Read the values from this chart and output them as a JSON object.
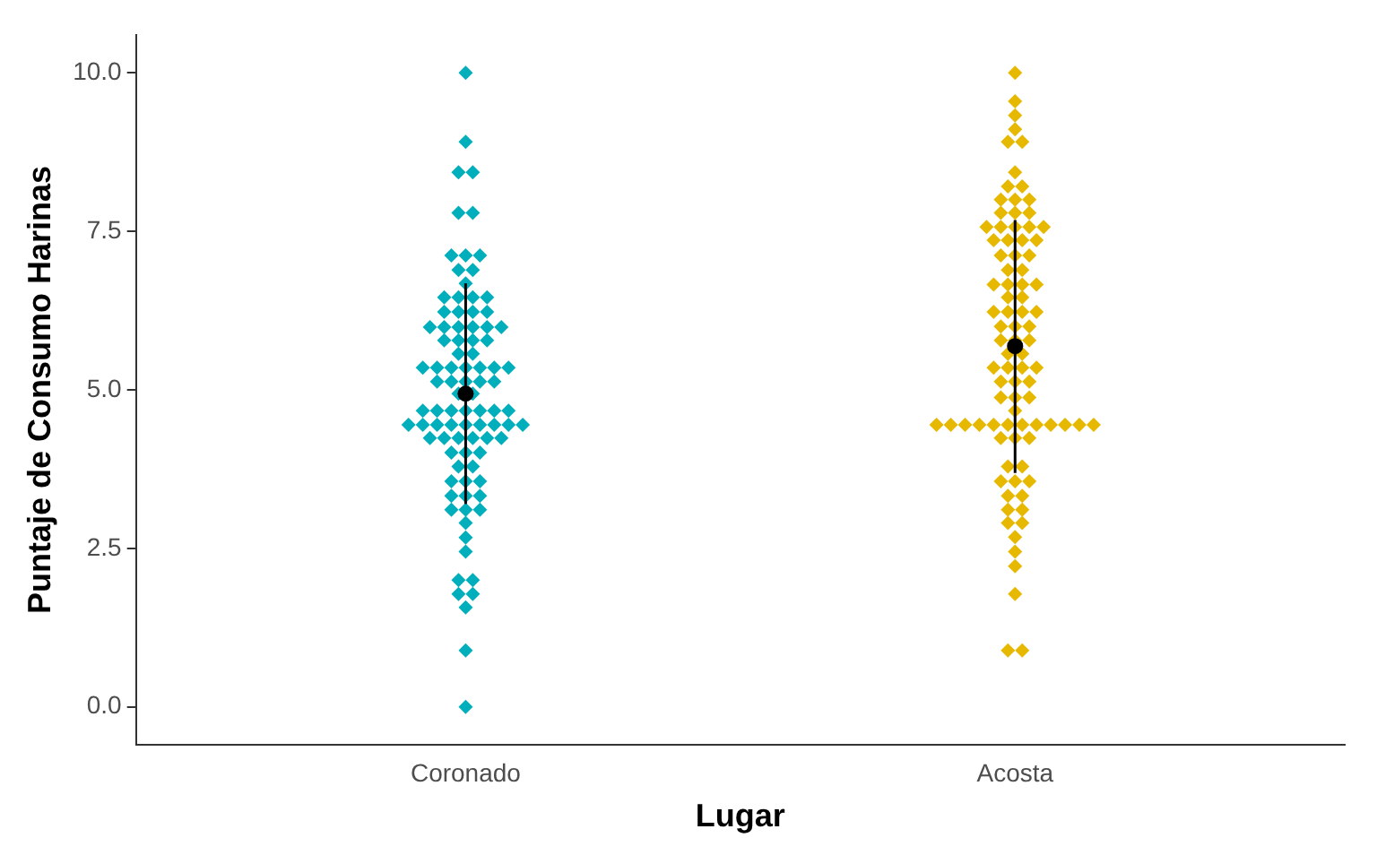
{
  "chart_data": {
    "type": "scatter",
    "xlabel": "Lugar",
    "ylabel": "Puntaje de Consumo Harinas",
    "categories": [
      "Coronado",
      "Acosta"
    ],
    "ylim": [
      -0.6,
      10.6
    ],
    "yticks": [
      {
        "value": 0,
        "label": "0.0"
      },
      {
        "value": 2.5,
        "label": "2.5"
      },
      {
        "value": 5,
        "label": "5.0"
      },
      {
        "value": 7.5,
        "label": "7.5"
      },
      {
        "value": 10,
        "label": "10.0"
      }
    ],
    "grid": false,
    "legend": false,
    "marker": "diamond",
    "series": [
      {
        "color": "#00afbb",
        "x": [
          "Coronado",
          "Coronado",
          "Coronado",
          "Coronado",
          "Coronado",
          "Coronado",
          "Coronado",
          "Coronado",
          "Coronado",
          "Coronado",
          "Coronado",
          "Coronado",
          "Coronado",
          "Coronado",
          "Coronado",
          "Coronado",
          "Coronado",
          "Coronado",
          "Coronado",
          "Coronado",
          "Coronado",
          "Coronado",
          "Coronado",
          "Coronado",
          "Coronado",
          "Coronado",
          "Coronado",
          "Coronado",
          "Coronado",
          "Coronado",
          "Coronado",
          "Coronado",
          "Coronado",
          "Coronado",
          "Coronado",
          "Coronado",
          "Coronado",
          "Coronado",
          "Coronado",
          "Coronado",
          "Coronado",
          "Coronado",
          "Coronado",
          "Coronado",
          "Coronado",
          "Coronado",
          "Coronado",
          "Coronado",
          "Coronado",
          "Coronado",
          "Coronado",
          "Coronado",
          "Coronado",
          "Coronado",
          "Coronado",
          "Coronado",
          "Coronado",
          "Coronado",
          "Coronado",
          "Coronado",
          "Coronado",
          "Coronado",
          "Coronado",
          "Coronado",
          "Coronado",
          "Coronado",
          "Coronado",
          "Coronado",
          "Coronado",
          "Coronado",
          "Coronado",
          "Coronado",
          "Coronado",
          "Coronado",
          "Coronado",
          "Coronado",
          "Coronado",
          "Coronado",
          "Coronado",
          "Coronado",
          "Coronado",
          "Coronado",
          "Coronado",
          "Coronado",
          "Coronado",
          "Coronado",
          "Coronado",
          "Coronado",
          "Coronado",
          "Coronado",
          "Coronado",
          "Coronado"
        ],
        "values": [
          10.0,
          8.91,
          8.43,
          8.43,
          7.79,
          7.79,
          7.12,
          7.12,
          7.12,
          6.89,
          6.89,
          6.68,
          6.46,
          6.46,
          6.46,
          6.46,
          6.23,
          6.23,
          6.23,
          6.23,
          5.99,
          5.99,
          5.99,
          5.99,
          5.99,
          5.99,
          5.78,
          5.78,
          5.78,
          5.78,
          5.57,
          5.57,
          5.35,
          5.35,
          5.35,
          5.35,
          5.35,
          5.35,
          5.35,
          5.13,
          5.13,
          5.13,
          5.13,
          5.13,
          4.94,
          4.94,
          4.67,
          4.67,
          4.67,
          4.67,
          4.67,
          4.67,
          4.67,
          4.45,
          4.45,
          4.45,
          4.45,
          4.45,
          4.45,
          4.45,
          4.45,
          4.45,
          4.24,
          4.24,
          4.24,
          4.24,
          4.24,
          4.24,
          4.01,
          4.01,
          4.01,
          3.79,
          3.79,
          3.56,
          3.56,
          3.56,
          3.33,
          3.33,
          3.33,
          3.11,
          3.11,
          3.11,
          2.9,
          2.67,
          2.45,
          2.0,
          2.0,
          1.78,
          1.78,
          1.57,
          0.89,
          0.0
        ]
      },
      {
        "color": "#e7b800",
        "x": [
          "Acosta",
          "Acosta",
          "Acosta",
          "Acosta",
          "Acosta",
          "Acosta",
          "Acosta",
          "Acosta",
          "Acosta",
          "Acosta",
          "Acosta",
          "Acosta",
          "Acosta",
          "Acosta",
          "Acosta",
          "Acosta",
          "Acosta",
          "Acosta",
          "Acosta",
          "Acosta",
          "Acosta",
          "Acosta",
          "Acosta",
          "Acosta",
          "Acosta",
          "Acosta",
          "Acosta",
          "Acosta",
          "Acosta",
          "Acosta",
          "Acosta",
          "Acosta",
          "Acosta",
          "Acosta",
          "Acosta",
          "Acosta",
          "Acosta",
          "Acosta",
          "Acosta",
          "Acosta",
          "Acosta",
          "Acosta",
          "Acosta",
          "Acosta",
          "Acosta",
          "Acosta",
          "Acosta",
          "Acosta",
          "Acosta",
          "Acosta",
          "Acosta",
          "Acosta",
          "Acosta",
          "Acosta",
          "Acosta",
          "Acosta",
          "Acosta",
          "Acosta",
          "Acosta",
          "Acosta",
          "Acosta",
          "Acosta",
          "Acosta",
          "Acosta",
          "Acosta",
          "Acosta",
          "Acosta",
          "Acosta",
          "Acosta",
          "Acosta",
          "Acosta",
          "Acosta",
          "Acosta",
          "Acosta",
          "Acosta",
          "Acosta",
          "Acosta",
          "Acosta",
          "Acosta",
          "Acosta",
          "Acosta",
          "Acosta",
          "Acosta",
          "Acosta",
          "Acosta",
          "Acosta",
          "Acosta",
          "Acosta",
          "Acosta",
          "Acosta"
        ],
        "values": [
          10.0,
          9.55,
          9.33,
          9.11,
          8.91,
          8.91,
          8.43,
          8.21,
          8.21,
          8.0,
          8.0,
          8.0,
          7.79,
          7.79,
          7.79,
          7.57,
          7.57,
          7.57,
          7.57,
          7.57,
          7.36,
          7.36,
          7.36,
          7.36,
          7.12,
          7.12,
          7.12,
          6.89,
          6.89,
          6.66,
          6.66,
          6.66,
          6.66,
          6.46,
          6.46,
          6.23,
          6.23,
          6.23,
          6.23,
          6.0,
          6.0,
          6.0,
          5.78,
          5.78,
          5.78,
          5.57,
          5.57,
          5.35,
          5.35,
          5.35,
          5.35,
          5.13,
          5.13,
          5.13,
          4.88,
          4.88,
          4.88,
          4.67,
          4.45,
          4.45,
          4.45,
          4.45,
          4.45,
          4.45,
          4.45,
          4.45,
          4.45,
          4.45,
          4.45,
          4.45,
          4.24,
          4.24,
          4.24,
          3.79,
          3.79,
          3.56,
          3.56,
          3.56,
          3.33,
          3.33,
          3.11,
          3.11,
          2.9,
          2.9,
          2.68,
          2.45,
          2.22,
          1.78,
          0.89,
          0.89
        ]
      },
      {
        "color": "#000000",
        "marker": "circle",
        "x": [
          "Coronado",
          "Acosta"
        ],
        "values": [
          4.94,
          5.69
        ],
        "errors": [
          [
            3.2,
            6.68
          ],
          [
            3.69,
            7.68
          ]
        ]
      }
    ]
  }
}
